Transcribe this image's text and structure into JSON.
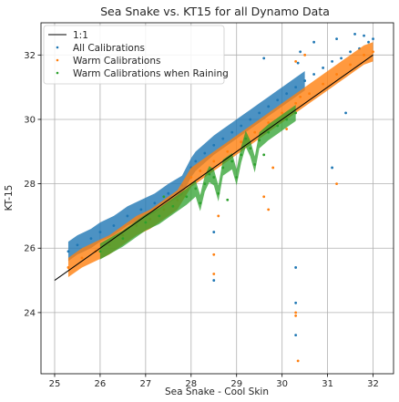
{
  "chart_data": {
    "type": "scatter",
    "title": "Sea Snake vs. KT15 for all Dynamo Data",
    "xlabel": "Sea Snake - Cool Skin",
    "ylabel": "KT-15",
    "xlim": [
      24.7,
      32.45
    ],
    "ylim": [
      22.1,
      33.0
    ],
    "xticks": [
      25,
      26,
      27,
      28,
      29,
      30,
      31,
      32
    ],
    "yticks": [
      24,
      26,
      28,
      30,
      32
    ],
    "grid": true,
    "legend_position": "top-left",
    "reference_line": {
      "name": "1:1",
      "x": [
        25,
        32
      ],
      "y": [
        25,
        32
      ],
      "color": "#000000"
    },
    "series": [
      {
        "name": "All Calibrations",
        "color": "#1f77b4",
        "points": [
          [
            25.3,
            25.9
          ],
          [
            25.5,
            26.1
          ],
          [
            25.8,
            26.3
          ],
          [
            26.0,
            26.5
          ],
          [
            26.3,
            26.7
          ],
          [
            26.6,
            27.0
          ],
          [
            26.9,
            27.2
          ],
          [
            27.2,
            27.4
          ],
          [
            27.5,
            27.7
          ],
          [
            27.8,
            27.95
          ],
          [
            28.0,
            28.5
          ],
          [
            28.1,
            28.7
          ],
          [
            28.3,
            28.95
          ],
          [
            28.5,
            29.2
          ],
          [
            28.7,
            29.4
          ],
          [
            28.9,
            29.6
          ],
          [
            29.1,
            29.8
          ],
          [
            29.3,
            30.0
          ],
          [
            29.5,
            30.2
          ],
          [
            29.7,
            30.4
          ],
          [
            29.9,
            30.6
          ],
          [
            30.1,
            30.8
          ],
          [
            30.3,
            31.0
          ],
          [
            30.5,
            31.2
          ],
          [
            30.7,
            31.4
          ],
          [
            30.9,
            31.6
          ],
          [
            31.1,
            31.8
          ],
          [
            31.3,
            31.9
          ],
          [
            31.5,
            32.1
          ],
          [
            31.7,
            32.2
          ],
          [
            31.9,
            32.4
          ],
          [
            32.0,
            32.5
          ],
          [
            29.6,
            31.9
          ],
          [
            30.35,
            31.75
          ],
          [
            30.4,
            32.1
          ],
          [
            30.7,
            32.4
          ],
          [
            31.2,
            32.5
          ],
          [
            31.6,
            32.65
          ],
          [
            31.8,
            32.6
          ],
          [
            31.1,
            28.5
          ],
          [
            31.4,
            30.2
          ],
          [
            30.3,
            24.3
          ],
          [
            30.3,
            23.3
          ],
          [
            28.5,
            25.0
          ],
          [
            28.5,
            26.5
          ],
          [
            30.3,
            25.4
          ]
        ]
      },
      {
        "name": "Warm Calibrations",
        "color": "#ff7f0e",
        "points": [
          [
            25.3,
            25.4
          ],
          [
            25.6,
            25.7
          ],
          [
            25.9,
            25.9
          ],
          [
            26.2,
            26.1
          ],
          [
            26.5,
            26.4
          ],
          [
            26.8,
            26.7
          ],
          [
            27.1,
            26.9
          ],
          [
            27.4,
            27.2
          ],
          [
            27.7,
            27.5
          ],
          [
            28.0,
            28.2
          ],
          [
            28.2,
            28.4
          ],
          [
            28.5,
            28.7
          ],
          [
            28.8,
            29.0
          ],
          [
            29.1,
            29.3
          ],
          [
            29.4,
            29.6
          ],
          [
            29.7,
            29.9
          ],
          [
            30.0,
            30.2
          ],
          [
            30.3,
            30.5
          ],
          [
            30.6,
            30.8
          ],
          [
            30.9,
            31.1
          ],
          [
            31.2,
            31.4
          ],
          [
            31.5,
            31.7
          ],
          [
            31.8,
            32.0
          ],
          [
            32.0,
            32.1
          ],
          [
            30.3,
            31.8
          ],
          [
            30.5,
            32.0
          ],
          [
            29.7,
            27.2
          ],
          [
            29.6,
            27.6
          ],
          [
            28.6,
            27.0
          ],
          [
            28.5,
            25.8
          ],
          [
            28.5,
            25.2
          ],
          [
            30.3,
            24.0
          ],
          [
            30.35,
            22.5
          ],
          [
            30.3,
            23.9
          ],
          [
            31.2,
            28.0
          ],
          [
            30.4,
            30.7
          ],
          [
            29.8,
            28.5
          ],
          [
            30.1,
            29.7
          ]
        ]
      },
      {
        "name": "Warm Calibrations when Raining",
        "color": "#2ca02c",
        "points": [
          [
            26.0,
            25.9
          ],
          [
            26.5,
            26.3
          ],
          [
            27.0,
            26.8
          ],
          [
            27.3,
            27.0
          ],
          [
            27.6,
            27.3
          ],
          [
            27.9,
            27.6
          ],
          [
            28.1,
            27.85
          ],
          [
            28.3,
            28.0
          ],
          [
            28.5,
            28.2
          ],
          [
            28.7,
            28.5
          ],
          [
            28.9,
            28.7
          ],
          [
            29.1,
            28.9
          ],
          [
            29.3,
            29.1
          ],
          [
            29.5,
            29.35
          ],
          [
            29.7,
            29.6
          ],
          [
            29.9,
            29.8
          ],
          [
            30.1,
            30.0
          ],
          [
            30.3,
            30.2
          ],
          [
            28.2,
            27.4
          ],
          [
            28.6,
            27.7
          ],
          [
            29.0,
            28.2
          ],
          [
            29.4,
            28.6
          ],
          [
            28.4,
            28.3
          ],
          [
            29.2,
            29.4
          ],
          [
            27.4,
            27.6
          ],
          [
            28.8,
            27.5
          ],
          [
            29.6,
            28.9
          ]
        ]
      }
    ]
  }
}
